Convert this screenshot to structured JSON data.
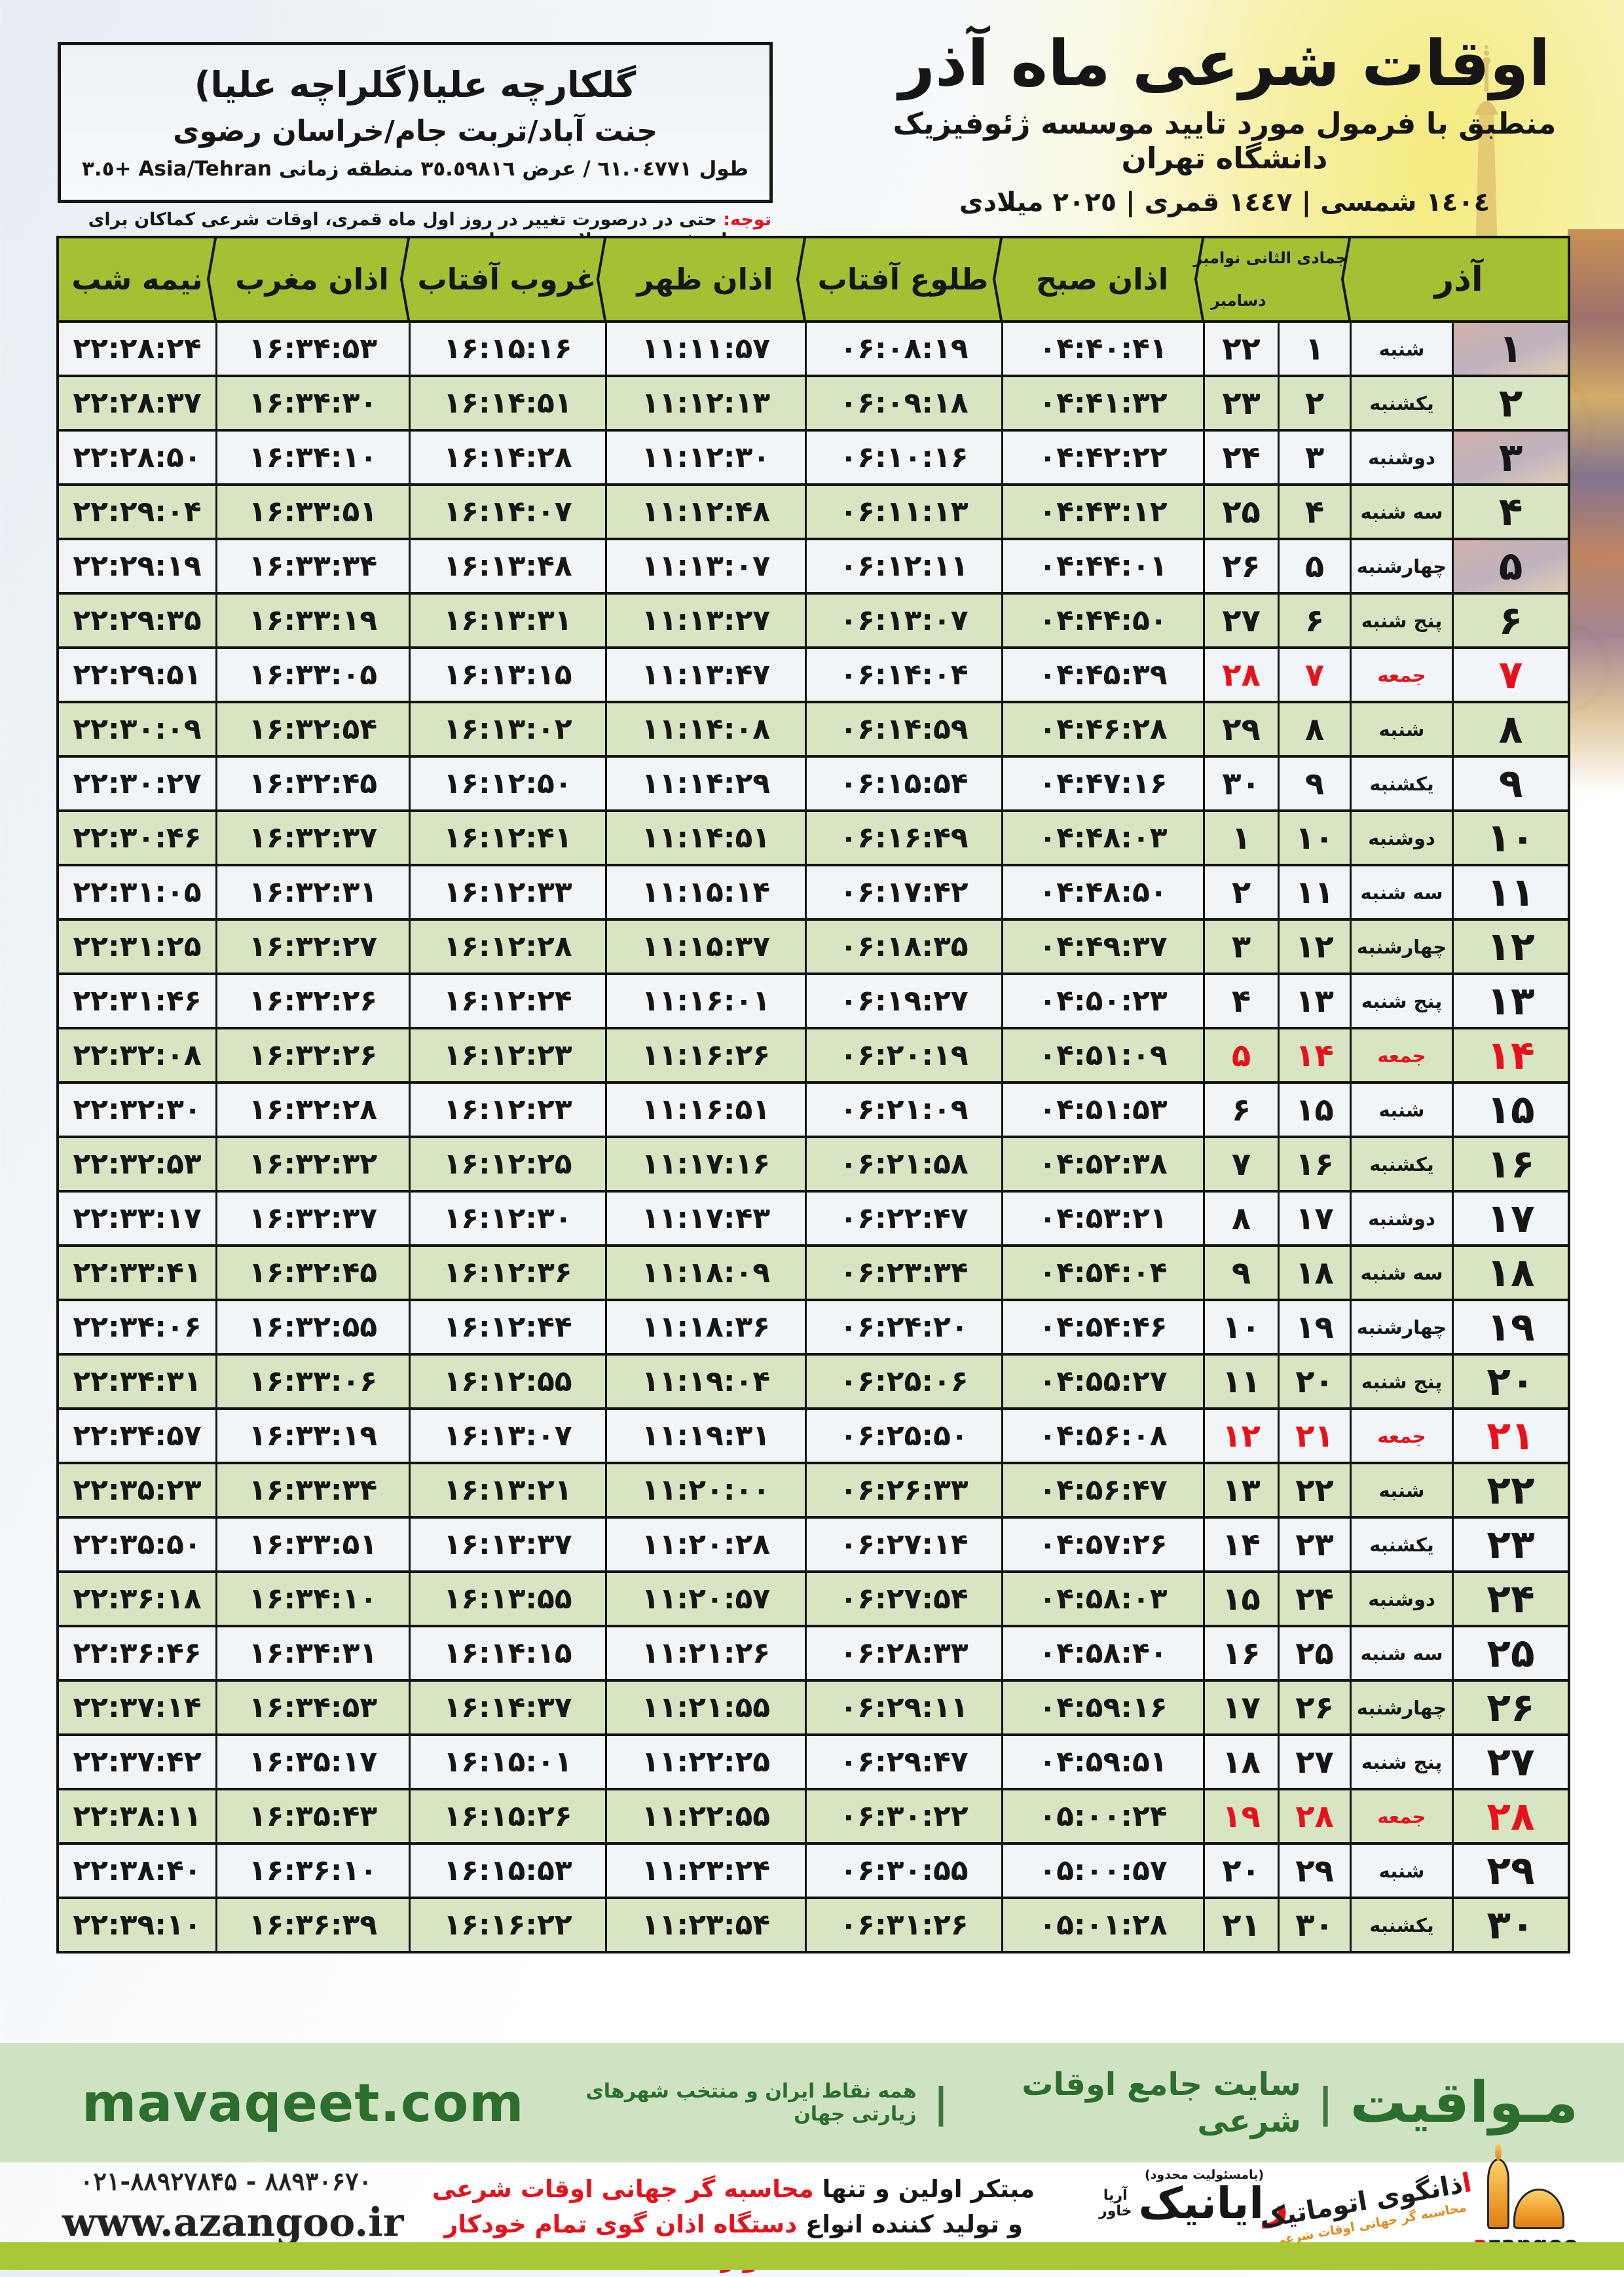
{
  "colors": {
    "header_green": "#a3c133",
    "row_green": "#d7e5c2",
    "row_light": "#f2f5f8",
    "friday_red": "#e8111b",
    "band_green": "#cfe3c2",
    "brand_green": "#2c6e2e",
    "strip_green": "#a9c836",
    "logo_orange": "#f2a233"
  },
  "header": {
    "title": "اوقات شرعی ماه آذر",
    "subtitle": "منطبق با فرمول مورد تایید موسسه ژئوفیزیک دانشگاه تهران",
    "calendar_line": "١٤٠٤ شمسی | ١٤٤٧ قمری | ٢٠٢٥ میلادی",
    "location": {
      "name": "گلکارچه علیا(گلراچه علیا)",
      "region": "جنت آباد/تربت جام/خراسان رضوی",
      "coords": "طول ٦١.٠٤٧٧١ / عرض ٣٥.٥٩٨١٦ منطقه زمانی Asia/Tehran +٣.٥"
    },
    "note_label": "توجه:",
    "note_text": " حتی در درصورت تغییر در روز اول ماه قمری، اوقات شرعی کماکان برای روزهای شمسی و میلادی معتبر است."
  },
  "table": {
    "header": {
      "month": "آذر",
      "hijri_greg_top": "جمادی الثانی نوامبر",
      "hijri_greg_bottom": "دسامبر",
      "azan_sobh": "اذان صبح",
      "tolu_aftab": "طلوع آفتاب",
      "azan_zohr": "اذان ظهر",
      "ghorub_aftab": "غروب آفتاب",
      "azan_maghreb": "اذان مغرب",
      "nime_shab": "نیمه شب"
    },
    "rows": [
      {
        "day": "۱",
        "weekday": "شنبه",
        "hijri": "۱",
        "greg": "۲۲",
        "azan_sobh": "۰۴:۴۰:۴۱",
        "tolu_aftab": "۰۶:۰۸:۱۹",
        "azan_zohr": "۱۱:۱۱:۵۷",
        "ghorub_aftab": "۱۶:۱۵:۱۶",
        "azan_maghreb": "۱۶:۳۴:۵۳",
        "nime_shab": "۲۲:۲۸:۲۴",
        "friday": false
      },
      {
        "day": "۲",
        "weekday": "یکشنبه",
        "hijri": "۲",
        "greg": "۲۳",
        "azan_sobh": "۰۴:۴۱:۳۲",
        "tolu_aftab": "۰۶:۰۹:۱۸",
        "azan_zohr": "۱۱:۱۲:۱۳",
        "ghorub_aftab": "۱۶:۱۴:۵۱",
        "azan_maghreb": "۱۶:۳۴:۳۰",
        "nime_shab": "۲۲:۲۸:۳۷",
        "friday": false
      },
      {
        "day": "۳",
        "weekday": "دوشنبه",
        "hijri": "۳",
        "greg": "۲۴",
        "azan_sobh": "۰۴:۴۲:۲۲",
        "tolu_aftab": "۰۶:۱۰:۱۶",
        "azan_zohr": "۱۱:۱۲:۳۰",
        "ghorub_aftab": "۱۶:۱۴:۲۸",
        "azan_maghreb": "۱۶:۳۴:۱۰",
        "nime_shab": "۲۲:۲۸:۵۰",
        "friday": false
      },
      {
        "day": "۴",
        "weekday": "سه شنبه",
        "hijri": "۴",
        "greg": "۲۵",
        "azan_sobh": "۰۴:۴۳:۱۲",
        "tolu_aftab": "۰۶:۱۱:۱۳",
        "azan_zohr": "۱۱:۱۲:۴۸",
        "ghorub_aftab": "۱۶:۱۴:۰۷",
        "azan_maghreb": "۱۶:۳۳:۵۱",
        "nime_shab": "۲۲:۲۹:۰۴",
        "friday": false
      },
      {
        "day": "۵",
        "weekday": "چهارشنبه",
        "hijri": "۵",
        "greg": "۲۶",
        "azan_sobh": "۰۴:۴۴:۰۱",
        "tolu_aftab": "۰۶:۱۲:۱۱",
        "azan_zohr": "۱۱:۱۳:۰۷",
        "ghorub_aftab": "۱۶:۱۳:۴۸",
        "azan_maghreb": "۱۶:۳۳:۳۴",
        "nime_shab": "۲۲:۲۹:۱۹",
        "friday": false
      },
      {
        "day": "۶",
        "weekday": "پنج شنبه",
        "hijri": "۶",
        "greg": "۲۷",
        "azan_sobh": "۰۴:۴۴:۵۰",
        "tolu_aftab": "۰۶:۱۳:۰۷",
        "azan_zohr": "۱۱:۱۳:۲۷",
        "ghorub_aftab": "۱۶:۱۳:۳۱",
        "azan_maghreb": "۱۶:۳۳:۱۹",
        "nime_shab": "۲۲:۲۹:۳۵",
        "friday": false
      },
      {
        "day": "۷",
        "weekday": "جمعه",
        "hijri": "۷",
        "greg": "۲۸",
        "azan_sobh": "۰۴:۴۵:۳۹",
        "tolu_aftab": "۰۶:۱۴:۰۴",
        "azan_zohr": "۱۱:۱۳:۴۷",
        "ghorub_aftab": "۱۶:۱۳:۱۵",
        "azan_maghreb": "۱۶:۳۳:۰۵",
        "nime_shab": "۲۲:۲۹:۵۱",
        "friday": true
      },
      {
        "day": "۸",
        "weekday": "شنبه",
        "hijri": "۸",
        "greg": "۲۹",
        "azan_sobh": "۰۴:۴۶:۲۸",
        "tolu_aftab": "۰۶:۱۴:۵۹",
        "azan_zohr": "۱۱:۱۴:۰۸",
        "ghorub_aftab": "۱۶:۱۳:۰۲",
        "azan_maghreb": "۱۶:۳۲:۵۴",
        "nime_shab": "۲۲:۳۰:۰۹",
        "friday": false
      },
      {
        "day": "۹",
        "weekday": "یکشنبه",
        "hijri": "۹",
        "greg": "۳۰",
        "azan_sobh": "۰۴:۴۷:۱۶",
        "tolu_aftab": "۰۶:۱۵:۵۴",
        "azan_zohr": "۱۱:۱۴:۲۹",
        "ghorub_aftab": "۱۶:۱۲:۵۰",
        "azan_maghreb": "۱۶:۳۲:۴۵",
        "nime_shab": "۲۲:۳۰:۲۷",
        "friday": false
      },
      {
        "day": "۱۰",
        "weekday": "دوشنبه",
        "hijri": "۱۰",
        "greg": "۱",
        "azan_sobh": "۰۴:۴۸:۰۳",
        "tolu_aftab": "۰۶:۱۶:۴۹",
        "azan_zohr": "۱۱:۱۴:۵۱",
        "ghorub_aftab": "۱۶:۱۲:۴۱",
        "azan_maghreb": "۱۶:۳۲:۳۷",
        "nime_shab": "۲۲:۳۰:۴۶",
        "friday": false
      },
      {
        "day": "۱۱",
        "weekday": "سه شنبه",
        "hijri": "۱۱",
        "greg": "۲",
        "azan_sobh": "۰۴:۴۸:۵۰",
        "tolu_aftab": "۰۶:۱۷:۴۲",
        "azan_zohr": "۱۱:۱۵:۱۴",
        "ghorub_aftab": "۱۶:۱۲:۳۳",
        "azan_maghreb": "۱۶:۳۲:۳۱",
        "nime_shab": "۲۲:۳۱:۰۵",
        "friday": false
      },
      {
        "day": "۱۲",
        "weekday": "چهارشنبه",
        "hijri": "۱۲",
        "greg": "۳",
        "azan_sobh": "۰۴:۴۹:۳۷",
        "tolu_aftab": "۰۶:۱۸:۳۵",
        "azan_zohr": "۱۱:۱۵:۳۷",
        "ghorub_aftab": "۱۶:۱۲:۲۸",
        "azan_maghreb": "۱۶:۳۲:۲۷",
        "nime_shab": "۲۲:۳۱:۲۵",
        "friday": false
      },
      {
        "day": "۱۳",
        "weekday": "پنج شنبه",
        "hijri": "۱۳",
        "greg": "۴",
        "azan_sobh": "۰۴:۵۰:۲۳",
        "tolu_aftab": "۰۶:۱۹:۲۷",
        "azan_zohr": "۱۱:۱۶:۰۱",
        "ghorub_aftab": "۱۶:۱۲:۲۴",
        "azan_maghreb": "۱۶:۳۲:۲۶",
        "nime_shab": "۲۲:۳۱:۴۶",
        "friday": false
      },
      {
        "day": "۱۴",
        "weekday": "جمعه",
        "hijri": "۱۴",
        "greg": "۵",
        "azan_sobh": "۰۴:۵۱:۰۹",
        "tolu_aftab": "۰۶:۲۰:۱۹",
        "azan_zohr": "۱۱:۱۶:۲۶",
        "ghorub_aftab": "۱۶:۱۲:۲۳",
        "azan_maghreb": "۱۶:۳۲:۲۶",
        "nime_shab": "۲۲:۳۲:۰۸",
        "friday": true
      },
      {
        "day": "۱۵",
        "weekday": "شنبه",
        "hijri": "۱۵",
        "greg": "۶",
        "azan_sobh": "۰۴:۵۱:۵۳",
        "tolu_aftab": "۰۶:۲۱:۰۹",
        "azan_zohr": "۱۱:۱۶:۵۱",
        "ghorub_aftab": "۱۶:۱۲:۲۳",
        "azan_maghreb": "۱۶:۳۲:۲۸",
        "nime_shab": "۲۲:۳۲:۳۰",
        "friday": false
      },
      {
        "day": "۱۶",
        "weekday": "یکشنبه",
        "hijri": "۱۶",
        "greg": "۷",
        "azan_sobh": "۰۴:۵۲:۳۸",
        "tolu_aftab": "۰۶:۲۱:۵۸",
        "azan_zohr": "۱۱:۱۷:۱۶",
        "ghorub_aftab": "۱۶:۱۲:۲۵",
        "azan_maghreb": "۱۶:۳۲:۳۲",
        "nime_shab": "۲۲:۳۲:۵۳",
        "friday": false
      },
      {
        "day": "۱۷",
        "weekday": "دوشنبه",
        "hijri": "۱۷",
        "greg": "۸",
        "azan_sobh": "۰۴:۵۳:۲۱",
        "tolu_aftab": "۰۶:۲۲:۴۷",
        "azan_zohr": "۱۱:۱۷:۴۳",
        "ghorub_aftab": "۱۶:۱۲:۳۰",
        "azan_maghreb": "۱۶:۳۲:۳۷",
        "nime_shab": "۲۲:۳۳:۱۷",
        "friday": false
      },
      {
        "day": "۱۸",
        "weekday": "سه شنبه",
        "hijri": "۱۸",
        "greg": "۹",
        "azan_sobh": "۰۴:۵۴:۰۴",
        "tolu_aftab": "۰۶:۲۳:۳۴",
        "azan_zohr": "۱۱:۱۸:۰۹",
        "ghorub_aftab": "۱۶:۱۲:۳۶",
        "azan_maghreb": "۱۶:۳۲:۴۵",
        "nime_shab": "۲۲:۳۳:۴۱",
        "friday": false
      },
      {
        "day": "۱۹",
        "weekday": "چهارشنبه",
        "hijri": "۱۹",
        "greg": "۱۰",
        "azan_sobh": "۰۴:۵۴:۴۶",
        "tolu_aftab": "۰۶:۲۴:۲۰",
        "azan_zohr": "۱۱:۱۸:۳۶",
        "ghorub_aftab": "۱۶:۱۲:۴۴",
        "azan_maghreb": "۱۶:۳۲:۵۵",
        "nime_shab": "۲۲:۳۴:۰۶",
        "friday": false
      },
      {
        "day": "۲۰",
        "weekday": "پنج شنبه",
        "hijri": "۲۰",
        "greg": "۱۱",
        "azan_sobh": "۰۴:۵۵:۲۷",
        "tolu_aftab": "۰۶:۲۵:۰۶",
        "azan_zohr": "۱۱:۱۹:۰۴",
        "ghorub_aftab": "۱۶:۱۲:۵۵",
        "azan_maghreb": "۱۶:۳۳:۰۶",
        "nime_shab": "۲۲:۳۴:۳۱",
        "friday": false
      },
      {
        "day": "۲۱",
        "weekday": "جمعه",
        "hijri": "۲۱",
        "greg": "۱۲",
        "azan_sobh": "۰۴:۵۶:۰۸",
        "tolu_aftab": "۰۶:۲۵:۵۰",
        "azan_zohr": "۱۱:۱۹:۳۱",
        "ghorub_aftab": "۱۶:۱۳:۰۷",
        "azan_maghreb": "۱۶:۳۳:۱۹",
        "nime_shab": "۲۲:۳۴:۵۷",
        "friday": true
      },
      {
        "day": "۲۲",
        "weekday": "شنبه",
        "hijri": "۲۲",
        "greg": "۱۳",
        "azan_sobh": "۰۴:۵۶:۴۷",
        "tolu_aftab": "۰۶:۲۶:۳۳",
        "azan_zohr": "۱۱:۲۰:۰۰",
        "ghorub_aftab": "۱۶:۱۳:۲۱",
        "azan_maghreb": "۱۶:۳۳:۳۴",
        "nime_shab": "۲۲:۳۵:۲۳",
        "friday": false
      },
      {
        "day": "۲۳",
        "weekday": "یکشنبه",
        "hijri": "۲۳",
        "greg": "۱۴",
        "azan_sobh": "۰۴:۵۷:۲۶",
        "tolu_aftab": "۰۶:۲۷:۱۴",
        "azan_zohr": "۱۱:۲۰:۲۸",
        "ghorub_aftab": "۱۶:۱۳:۳۷",
        "azan_maghreb": "۱۶:۳۳:۵۱",
        "nime_shab": "۲۲:۳۵:۵۰",
        "friday": false
      },
      {
        "day": "۲۴",
        "weekday": "دوشنبه",
        "hijri": "۲۴",
        "greg": "۱۵",
        "azan_sobh": "۰۴:۵۸:۰۳",
        "tolu_aftab": "۰۶:۲۷:۵۴",
        "azan_zohr": "۱۱:۲۰:۵۷",
        "ghorub_aftab": "۱۶:۱۳:۵۵",
        "azan_maghreb": "۱۶:۳۴:۱۰",
        "nime_shab": "۲۲:۳۶:۱۸",
        "friday": false
      },
      {
        "day": "۲۵",
        "weekday": "سه شنبه",
        "hijri": "۲۵",
        "greg": "۱۶",
        "azan_sobh": "۰۴:۵۸:۴۰",
        "tolu_aftab": "۰۶:۲۸:۳۳",
        "azan_zohr": "۱۱:۲۱:۲۶",
        "ghorub_aftab": "۱۶:۱۴:۱۵",
        "azan_maghreb": "۱۶:۳۴:۳۱",
        "nime_shab": "۲۲:۳۶:۴۶",
        "friday": false
      },
      {
        "day": "۲۶",
        "weekday": "چهارشنبه",
        "hijri": "۲۶",
        "greg": "۱۷",
        "azan_sobh": "۰۴:۵۹:۱۶",
        "tolu_aftab": "۰۶:۲۹:۱۱",
        "azan_zohr": "۱۱:۲۱:۵۵",
        "ghorub_aftab": "۱۶:۱۴:۳۷",
        "azan_maghreb": "۱۶:۳۴:۵۳",
        "nime_shab": "۲۲:۳۷:۱۴",
        "friday": false
      },
      {
        "day": "۲۷",
        "weekday": "پنج شنبه",
        "hijri": "۲۷",
        "greg": "۱۸",
        "azan_sobh": "۰۴:۵۹:۵۱",
        "tolu_aftab": "۰۶:۲۹:۴۷",
        "azan_zohr": "۱۱:۲۲:۲۵",
        "ghorub_aftab": "۱۶:۱۵:۰۱",
        "azan_maghreb": "۱۶:۳۵:۱۷",
        "nime_shab": "۲۲:۳۷:۴۲",
        "friday": false
      },
      {
        "day": "۲۸",
        "weekday": "جمعه",
        "hijri": "۲۸",
        "greg": "۱۹",
        "azan_sobh": "۰۵:۰۰:۲۴",
        "tolu_aftab": "۰۶:۳۰:۲۲",
        "azan_zohr": "۱۱:۲۲:۵۵",
        "ghorub_aftab": "۱۶:۱۵:۲۶",
        "azan_maghreb": "۱۶:۳۵:۴۳",
        "nime_shab": "۲۲:۳۸:۱۱",
        "friday": true
      },
      {
        "day": "۲۹",
        "weekday": "شنبه",
        "hijri": "۲۹",
        "greg": "۲۰",
        "azan_sobh": "۰۵:۰۰:۵۷",
        "tolu_aftab": "۰۶:۳۰:۵۵",
        "azan_zohr": "۱۱:۲۳:۲۴",
        "ghorub_aftab": "۱۶:۱۵:۵۳",
        "azan_maghreb": "۱۶:۳۶:۱۰",
        "nime_shab": "۲۲:۳۸:۴۰",
        "friday": false
      },
      {
        "day": "۳۰",
        "weekday": "یکشنبه",
        "hijri": "۳۰",
        "greg": "۲۱",
        "azan_sobh": "۰۵:۰۱:۲۸",
        "tolu_aftab": "۰۶:۳۱:۲۶",
        "azan_zohr": "۱۱:۲۳:۵۴",
        "ghorub_aftab": "۱۶:۱۶:۲۲",
        "azan_maghreb": "۱۶:۳۶:۳۹",
        "nime_shab": "۲۲:۳۹:۱۰",
        "friday": false
      }
    ]
  },
  "footer": {
    "brand_fa": "مـواقیت",
    "brand_sep": "|",
    "brand_tagline_1": "سایت جامع اوقات شرعی",
    "brand_tagline_2": "همه نقاط ایران و منتخب شهرهای زیارتی جهان",
    "brand_en": "mavaqeet.com",
    "phones": "۰۲۱-۸۸۹۲۷۸۴۵ - ۸۸۹۳۰۶۷۰",
    "website": "www.azangoo.ir",
    "slogan_1_black": "مبتکر اولین و تنها ",
    "slogan_1_red": "محاسبه گر جهانی اوقات شرعی",
    "slogan_2_black": "و تولید کننده انواع ",
    "slogan_2_red": "دستگاه اذان گوی تمام خودکار ماهواره ای",
    "rayanik_note": "(بامسئولیت محدود)",
    "rayanik_word_initial": "ر",
    "rayanik_word_rest": "ایانیک",
    "rayanik_side_1": "آریا",
    "rayanik_side_2": "خاور",
    "azangoo_fa_initial": "ا",
    "azangoo_fa_rest": "ذانگوی اتوماتیک",
    "azangoo_fa_sub": "محاسبه گر جهانی اوقات شرعی",
    "azangoo_en_initial": "a",
    "azangoo_en_rest": "zangoo"
  }
}
